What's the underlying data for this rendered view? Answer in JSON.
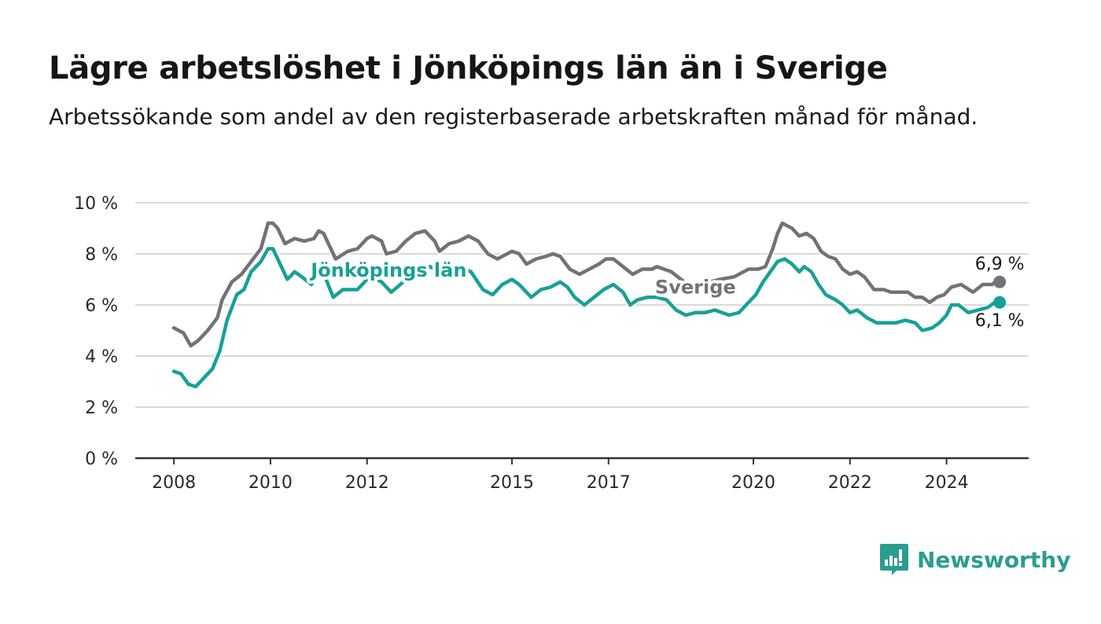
{
  "title": "Lägre arbetslöshet i Jönköpings län än i Sverige",
  "subtitle": "Arbetssökande som andel av den registerbaserade arbetskraften månad för månad.",
  "brand": {
    "name": "Newsworthy"
  },
  "colors": {
    "sverige": "#737278",
    "jonkoping": "#17a196",
    "grid": "#d9d9d9",
    "axis": "#333333"
  },
  "chart_data": {
    "type": "line",
    "title": "Lägre arbetslöshet i Jönköpings län än i Sverige",
    "ylim": [
      0,
      10
    ],
    "y_ticks": [
      0,
      2,
      4,
      6,
      8,
      10
    ],
    "y_tick_labels": [
      "0 %",
      "2 %",
      "4 %",
      "6 %",
      "8 %",
      "10 %"
    ],
    "x_ticks": [
      2008,
      2010,
      2012,
      2015,
      2017,
      2020,
      2022,
      2024
    ],
    "x_tick_labels": [
      "2008",
      "2010",
      "2012",
      "2015",
      "2017",
      "2020",
      "2022",
      "2024"
    ],
    "xlim": [
      2007.2,
      2025.7
    ],
    "grid": true,
    "series": [
      {
        "name": "Sverige",
        "end_label": "6,9 %",
        "points": [
          [
            2008.0,
            5.1
          ],
          [
            2008.2,
            4.9
          ],
          [
            2008.35,
            4.4
          ],
          [
            2008.5,
            4.6
          ],
          [
            2008.7,
            5.0
          ],
          [
            2008.9,
            5.5
          ],
          [
            2009.0,
            6.2
          ],
          [
            2009.2,
            6.9
          ],
          [
            2009.4,
            7.2
          ],
          [
            2009.6,
            7.7
          ],
          [
            2009.8,
            8.2
          ],
          [
            2009.95,
            9.2
          ],
          [
            2010.05,
            9.2
          ],
          [
            2010.15,
            9.0
          ],
          [
            2010.3,
            8.4
          ],
          [
            2010.5,
            8.6
          ],
          [
            2010.7,
            8.5
          ],
          [
            2010.9,
            8.6
          ],
          [
            2011.0,
            8.9
          ],
          [
            2011.1,
            8.8
          ],
          [
            2011.35,
            7.8
          ],
          [
            2011.6,
            8.1
          ],
          [
            2011.8,
            8.2
          ],
          [
            2012.0,
            8.6
          ],
          [
            2012.1,
            8.7
          ],
          [
            2012.3,
            8.5
          ],
          [
            2012.4,
            8.0
          ],
          [
            2012.6,
            8.1
          ],
          [
            2012.8,
            8.5
          ],
          [
            2013.0,
            8.8
          ],
          [
            2013.2,
            8.9
          ],
          [
            2013.4,
            8.5
          ],
          [
            2013.5,
            8.1
          ],
          [
            2013.7,
            8.4
          ],
          [
            2013.9,
            8.5
          ],
          [
            2014.1,
            8.7
          ],
          [
            2014.3,
            8.5
          ],
          [
            2014.5,
            8.0
          ],
          [
            2014.7,
            7.8
          ],
          [
            2014.9,
            8.0
          ],
          [
            2015.0,
            8.1
          ],
          [
            2015.15,
            8.0
          ],
          [
            2015.3,
            7.6
          ],
          [
            2015.5,
            7.8
          ],
          [
            2015.7,
            7.9
          ],
          [
            2015.85,
            8.0
          ],
          [
            2016.0,
            7.9
          ],
          [
            2016.2,
            7.4
          ],
          [
            2016.4,
            7.2
          ],
          [
            2016.6,
            7.4
          ],
          [
            2016.8,
            7.6
          ],
          [
            2016.95,
            7.8
          ],
          [
            2017.1,
            7.8
          ],
          [
            2017.3,
            7.5
          ],
          [
            2017.5,
            7.2
          ],
          [
            2017.7,
            7.4
          ],
          [
            2017.9,
            7.4
          ],
          [
            2018.0,
            7.5
          ],
          [
            2018.3,
            7.3
          ],
          [
            2018.5,
            7.0
          ],
          [
            2018.7,
            6.7
          ],
          [
            2018.95,
            6.8
          ],
          [
            2019.1,
            6.9
          ],
          [
            2019.3,
            7.0
          ],
          [
            2019.6,
            7.1
          ],
          [
            2019.9,
            7.4
          ],
          [
            2020.1,
            7.4
          ],
          [
            2020.25,
            7.5
          ],
          [
            2020.4,
            8.2
          ],
          [
            2020.5,
            8.8
          ],
          [
            2020.6,
            9.2
          ],
          [
            2020.7,
            9.1
          ],
          [
            2020.8,
            9.0
          ],
          [
            2020.95,
            8.7
          ],
          [
            2021.1,
            8.8
          ],
          [
            2021.25,
            8.6
          ],
          [
            2021.4,
            8.1
          ],
          [
            2021.55,
            7.9
          ],
          [
            2021.7,
            7.8
          ],
          [
            2021.85,
            7.4
          ],
          [
            2022.0,
            7.2
          ],
          [
            2022.15,
            7.3
          ],
          [
            2022.3,
            7.1
          ],
          [
            2022.5,
            6.6
          ],
          [
            2022.7,
            6.6
          ],
          [
            2022.85,
            6.5
          ],
          [
            2023.0,
            6.5
          ],
          [
            2023.2,
            6.5
          ],
          [
            2023.35,
            6.3
          ],
          [
            2023.5,
            6.3
          ],
          [
            2023.65,
            6.1
          ],
          [
            2023.8,
            6.3
          ],
          [
            2023.95,
            6.4
          ],
          [
            2024.1,
            6.7
          ],
          [
            2024.3,
            6.8
          ],
          [
            2024.55,
            6.5
          ],
          [
            2024.75,
            6.8
          ],
          [
            2024.95,
            6.8
          ],
          [
            2025.0,
            6.9
          ],
          [
            2025.1,
            6.9
          ]
        ]
      },
      {
        "name": "Jönköpings län",
        "end_label": "6,1 %",
        "points": [
          [
            2008.0,
            3.4
          ],
          [
            2008.15,
            3.3
          ],
          [
            2008.3,
            2.9
          ],
          [
            2008.45,
            2.8
          ],
          [
            2008.6,
            3.1
          ],
          [
            2008.8,
            3.5
          ],
          [
            2008.95,
            4.2
          ],
          [
            2009.1,
            5.4
          ],
          [
            2009.3,
            6.4
          ],
          [
            2009.45,
            6.6
          ],
          [
            2009.6,
            7.3
          ],
          [
            2009.8,
            7.7
          ],
          [
            2009.95,
            8.2
          ],
          [
            2010.05,
            8.2
          ],
          [
            2010.2,
            7.6
          ],
          [
            2010.35,
            7.0
          ],
          [
            2010.5,
            7.3
          ],
          [
            2010.65,
            7.1
          ],
          [
            2010.85,
            6.8
          ],
          [
            2011.0,
            7.4
          ],
          [
            2011.15,
            7.0
          ],
          [
            2011.3,
            6.3
          ],
          [
            2011.5,
            6.6
          ],
          [
            2011.8,
            6.6
          ],
          [
            2012.0,
            7.0
          ],
          [
            2012.1,
            7.1
          ],
          [
            2012.3,
            6.9
          ],
          [
            2012.5,
            6.5
          ],
          [
            2012.75,
            6.9
          ],
          [
            2012.95,
            7.4
          ],
          [
            2013.1,
            7.5
          ],
          [
            2013.3,
            7.5
          ],
          [
            2013.5,
            7.3
          ],
          [
            2013.75,
            7.2
          ],
          [
            2014.0,
            7.4
          ],
          [
            2014.15,
            7.3
          ],
          [
            2014.4,
            6.6
          ],
          [
            2014.6,
            6.4
          ],
          [
            2014.8,
            6.8
          ],
          [
            2015.0,
            7.0
          ],
          [
            2015.15,
            6.8
          ],
          [
            2015.4,
            6.3
          ],
          [
            2015.6,
            6.6
          ],
          [
            2015.8,
            6.7
          ],
          [
            2016.0,
            6.9
          ],
          [
            2016.15,
            6.7
          ],
          [
            2016.3,
            6.3
          ],
          [
            2016.5,
            6.0
          ],
          [
            2016.7,
            6.3
          ],
          [
            2016.9,
            6.6
          ],
          [
            2017.1,
            6.8
          ],
          [
            2017.3,
            6.5
          ],
          [
            2017.45,
            6.0
          ],
          [
            2017.6,
            6.2
          ],
          [
            2017.8,
            6.3
          ],
          [
            2018.0,
            6.3
          ],
          [
            2018.2,
            6.2
          ],
          [
            2018.4,
            5.8
          ],
          [
            2018.6,
            5.6
          ],
          [
            2018.8,
            5.7
          ],
          [
            2019.0,
            5.7
          ],
          [
            2019.2,
            5.8
          ],
          [
            2019.5,
            5.6
          ],
          [
            2019.7,
            5.7
          ],
          [
            2019.9,
            6.1
          ],
          [
            2020.05,
            6.4
          ],
          [
            2020.2,
            6.9
          ],
          [
            2020.35,
            7.3
          ],
          [
            2020.5,
            7.7
          ],
          [
            2020.65,
            7.8
          ],
          [
            2020.8,
            7.6
          ],
          [
            2020.95,
            7.3
          ],
          [
            2021.05,
            7.5
          ],
          [
            2021.2,
            7.3
          ],
          [
            2021.35,
            6.8
          ],
          [
            2021.5,
            6.4
          ],
          [
            2021.7,
            6.2
          ],
          [
            2021.85,
            6.0
          ],
          [
            2022.0,
            5.7
          ],
          [
            2022.15,
            5.8
          ],
          [
            2022.35,
            5.5
          ],
          [
            2022.55,
            5.3
          ],
          [
            2022.75,
            5.3
          ],
          [
            2022.95,
            5.3
          ],
          [
            2023.15,
            5.4
          ],
          [
            2023.35,
            5.3
          ],
          [
            2023.5,
            5.0
          ],
          [
            2023.7,
            5.1
          ],
          [
            2023.85,
            5.3
          ],
          [
            2024.0,
            5.6
          ],
          [
            2024.1,
            6.0
          ],
          [
            2024.25,
            6.0
          ],
          [
            2024.45,
            5.7
          ],
          [
            2024.65,
            5.8
          ],
          [
            2024.85,
            5.9
          ],
          [
            2025.0,
            6.1
          ],
          [
            2025.1,
            6.1
          ]
        ]
      }
    ]
  }
}
